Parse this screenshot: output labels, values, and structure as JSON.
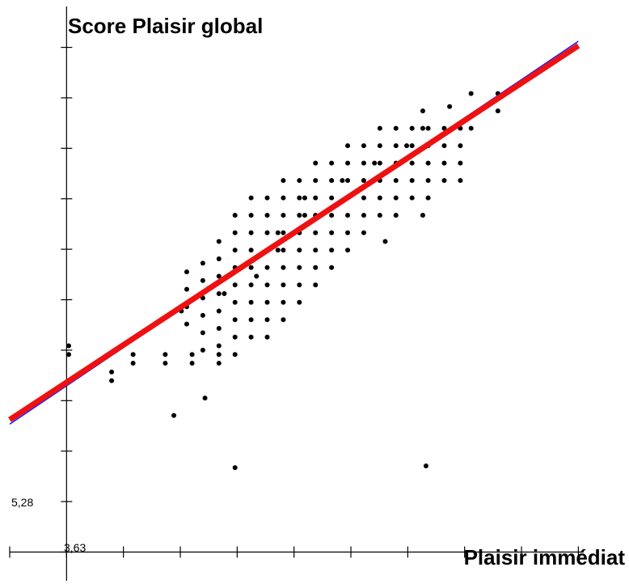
{
  "chart_data": {
    "type": "scatter",
    "ylabel": "Score Plaisir global",
    "xlabel": "Plaisir immédiat",
    "origin_labels": {
      "x": "3,63",
      "y": "5,28"
    },
    "grid": false,
    "points": [
      [
        4.92,
        7.05
      ],
      [
        4.63,
        6.85
      ],
      [
        5.2,
        6.25
      ],
      [
        6.98,
        6.27
      ],
      [
        4.05,
        7.25
      ],
      [
        4.05,
        7.35
      ],
      [
        3.65,
        7.55
      ],
      [
        3.65,
        7.65
      ],
      [
        4.25,
        7.45
      ],
      [
        4.25,
        7.55
      ],
      [
        4.55,
        7.45
      ],
      [
        4.55,
        7.55
      ],
      [
        4.8,
        7.45
      ],
      [
        4.8,
        7.55
      ],
      [
        5.05,
        7.45
      ],
      [
        5.05,
        7.55
      ],
      [
        4.7,
        8.05
      ],
      [
        5.1,
        8.25
      ],
      [
        5.4,
        8.45
      ],
      [
        5.6,
        8.75
      ],
      [
        5.6,
        8.95
      ],
      [
        5.85,
        9.15
      ],
      [
        5.85,
        9.35
      ],
      [
        6.2,
        9.55
      ],
      [
        6.5,
        9.75
      ],
      [
        6.8,
        9.95
      ],
      [
        6.95,
        10.15
      ],
      [
        6.95,
        10.35
      ],
      [
        7.2,
        10.4
      ],
      [
        7.4,
        10.55
      ],
      [
        7.65,
        10.55
      ],
      [
        7.4,
        10.15
      ],
      [
        7.65,
        10.35
      ],
      [
        6.95,
        9.15
      ],
      [
        6.6,
        8.85
      ]
    ],
    "dot_grid": [
      {
        "x": 4.75,
        "y_min": 7.9,
        "y_max": 8.55
      },
      {
        "x": 4.9,
        "y_min": 7.6,
        "y_max": 8.75
      },
      {
        "x": 5.05,
        "y_min": 7.45,
        "y_max": 9.0
      },
      {
        "x": 5.2,
        "y_min": 7.55,
        "y_max": 9.15
      },
      {
        "x": 5.35,
        "y_min": 7.75,
        "y_max": 9.35
      },
      {
        "x": 5.5,
        "y_min": 7.75,
        "y_max": 9.35
      },
      {
        "x": 5.65,
        "y_min": 7.95,
        "y_max": 9.55
      },
      {
        "x": 5.8,
        "y_min": 8.15,
        "y_max": 9.55
      },
      {
        "x": 5.95,
        "y_min": 8.35,
        "y_max": 9.75
      },
      {
        "x": 6.1,
        "y_min": 8.55,
        "y_max": 9.75
      },
      {
        "x": 6.25,
        "y_min": 8.75,
        "y_max": 9.95
      },
      {
        "x": 6.4,
        "y_min": 8.95,
        "y_max": 9.95
      },
      {
        "x": 6.55,
        "y_min": 9.15,
        "y_max": 10.15
      },
      {
        "x": 6.7,
        "y_min": 9.15,
        "y_max": 10.15
      },
      {
        "x": 6.85,
        "y_min": 9.35,
        "y_max": 10.15
      },
      {
        "x": 7.0,
        "y_min": 9.35,
        "y_max": 10.15
      },
      {
        "x": 7.15,
        "y_min": 9.55,
        "y_max": 10.25
      },
      {
        "x": 7.3,
        "y_min": 9.55,
        "y_max": 10.15
      }
    ],
    "dot_step_y": 0.2,
    "regression": [
      {
        "name": "",
        "color": "#1a1aff",
        "width": 1.5,
        "x": [
          3.1,
          8.4
        ],
        "y": [
          6.75,
          11.15
        ]
      },
      {
        "name": "",
        "color": "#ee1111",
        "width": 7,
        "x": [
          3.1,
          8.4
        ],
        "y": [
          6.8,
          11.1
        ]
      }
    ],
    "xlim": [
      3.1,
      8.45
    ],
    "ylim": [
      4.95,
      11.55
    ],
    "x_ticks": [
      3.1,
      3.63,
      4.16,
      4.69,
      5.22,
      5.75,
      6.28,
      6.81,
      7.34,
      7.87,
      8.4
    ],
    "y_ticks": [
      5.28,
      5.86,
      6.44,
      7.02,
      7.6,
      8.18,
      8.76,
      9.34,
      9.92,
      10.5,
      11.08
    ]
  }
}
